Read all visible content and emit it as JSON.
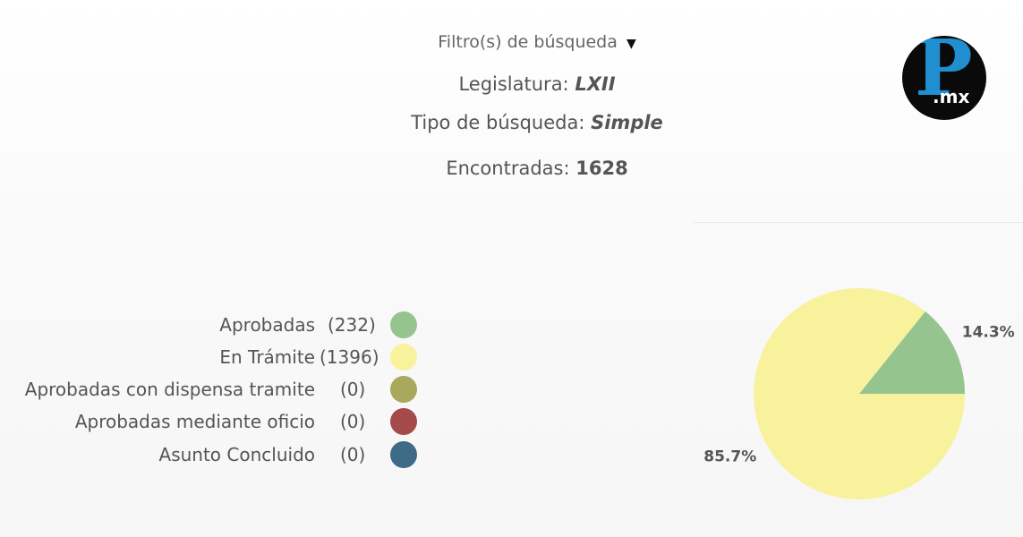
{
  "filters": {
    "label": "Filtro(s) de búsqueda",
    "toggle_glyph": "▼",
    "legislatura_label": "Legislatura:",
    "legislatura_value": "LXII",
    "tipo_label": "Tipo de búsqueda:",
    "tipo_value": "Simple",
    "encontradas_label": "Encontradas:",
    "encontradas_value": "1628"
  },
  "logo": {
    "letter": "P",
    "suffix": ".mx"
  },
  "colors": {
    "aprobadas": "#95c48e",
    "tramite": "#f8f29d",
    "dispensa": "#a9a85c",
    "oficio": "#a44a4a",
    "concluido": "#3e6b85"
  },
  "chart_data": {
    "type": "pie",
    "title": "",
    "legend_position": "left",
    "series": [
      {
        "name": "Aprobadas",
        "count_text": "(232)",
        "value": 232,
        "percent_label": "14.3%",
        "color": "#95c48e"
      },
      {
        "name": "En Trámite",
        "count_text": "(1396)",
        "value": 1396,
        "percent_label": "85.7%",
        "color": "#f8f29d"
      },
      {
        "name": "Aprobadas con dispensa tramite",
        "count_text": "(0)",
        "value": 0,
        "percent_label": "",
        "color": "#a9a85c"
      },
      {
        "name": "Aprobadas mediante oficio",
        "count_text": "(0)",
        "value": 0,
        "percent_label": "",
        "color": "#a44a4a"
      },
      {
        "name": "Asunto Concluido",
        "count_text": "(0)",
        "value": 0,
        "percent_label": "",
        "color": "#3e6b85"
      }
    ]
  }
}
